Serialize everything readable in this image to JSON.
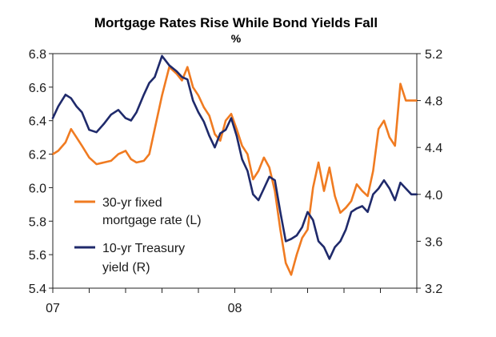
{
  "chart_data": {
    "type": "line",
    "title": "Mortgage Rates Rise While Bond Yields Fall",
    "subtitle": "%",
    "x_tick_labels": [
      "07",
      "08"
    ],
    "left_axis": {
      "ylim": [
        5.4,
        6.8
      ],
      "ticks": [
        "6.8",
        "6.6",
        "6.4",
        "6.2",
        "6.0",
        "5.8",
        "5.6",
        "5.4"
      ]
    },
    "right_axis": {
      "ylim": [
        3.2,
        5.2
      ],
      "ticks": [
        "5.2",
        "4.8",
        "4.4",
        "4.0",
        "3.6",
        "3.2"
      ]
    },
    "x_range": [
      0,
      20
    ],
    "series": [
      {
        "name": "30-yr fixed mortgage rate (L)",
        "legend_lines": [
          "30-yr fixed",
          "mortgage rate (L)"
        ],
        "axis": "left",
        "color": "#f07b21",
        "x": [
          0,
          0.3,
          0.7,
          1.0,
          1.3,
          1.6,
          2.0,
          2.4,
          2.8,
          3.2,
          3.6,
          4.0,
          4.3,
          4.6,
          5.0,
          5.3,
          5.6,
          6.0,
          6.4,
          6.8,
          7.1,
          7.4,
          7.7,
          8.0,
          8.3,
          8.6,
          8.9,
          9.2,
          9.5,
          9.8,
          10.1,
          10.4,
          10.7,
          11.0,
          11.3,
          11.6,
          11.9,
          12.2,
          12.5,
          12.8,
          13.1,
          13.4,
          13.7,
          14.0,
          14.3,
          14.6,
          14.9,
          15.2,
          15.5,
          15.8,
          16.1,
          16.4,
          16.7,
          17.0,
          17.3,
          17.6,
          17.9,
          18.2,
          18.5,
          18.8,
          19.1,
          19.4,
          19.7,
          20.0
        ],
        "values": [
          6.2,
          6.22,
          6.27,
          6.35,
          6.3,
          6.25,
          6.18,
          6.14,
          6.15,
          6.16,
          6.2,
          6.22,
          6.17,
          6.15,
          6.16,
          6.2,
          6.35,
          6.55,
          6.72,
          6.68,
          6.64,
          6.72,
          6.6,
          6.55,
          6.48,
          6.43,
          6.32,
          6.28,
          6.4,
          6.44,
          6.35,
          6.25,
          6.2,
          6.05,
          6.1,
          6.18,
          6.12,
          5.98,
          5.75,
          5.55,
          5.48,
          5.6,
          5.7,
          5.75,
          6.0,
          6.15,
          5.98,
          6.12,
          5.95,
          5.85,
          5.88,
          5.92,
          6.02,
          5.98,
          5.95,
          6.1,
          6.35,
          6.4,
          6.3,
          6.25,
          6.62,
          6.52,
          6.52,
          6.52
        ]
      },
      {
        "name": "10-yr Treasury yield (R)",
        "legend_lines": [
          "10-yr Treasury",
          "yield (R)"
        ],
        "axis": "right",
        "color": "#1f2a6b",
        "x": [
          0,
          0.3,
          0.7,
          1.0,
          1.3,
          1.6,
          2.0,
          2.4,
          2.8,
          3.2,
          3.6,
          4.0,
          4.3,
          4.6,
          5.0,
          5.3,
          5.6,
          6.0,
          6.4,
          6.8,
          7.1,
          7.4,
          7.7,
          8.0,
          8.3,
          8.6,
          8.9,
          9.2,
          9.5,
          9.8,
          10.1,
          10.4,
          10.7,
          11.0,
          11.3,
          11.6,
          11.9,
          12.2,
          12.5,
          12.8,
          13.1,
          13.4,
          13.7,
          14.0,
          14.3,
          14.6,
          14.9,
          15.2,
          15.5,
          15.8,
          16.1,
          16.4,
          16.7,
          17.0,
          17.3,
          17.6,
          17.9,
          18.2,
          18.5,
          18.8,
          19.1,
          19.4,
          19.7,
          20.0
        ],
        "values": [
          4.65,
          4.75,
          4.85,
          4.82,
          4.75,
          4.7,
          4.55,
          4.53,
          4.6,
          4.68,
          4.72,
          4.65,
          4.63,
          4.7,
          4.85,
          4.95,
          5.0,
          5.18,
          5.1,
          5.05,
          5.0,
          4.98,
          4.8,
          4.7,
          4.62,
          4.5,
          4.4,
          4.52,
          4.55,
          4.65,
          4.5,
          4.3,
          4.2,
          4.0,
          3.95,
          4.05,
          4.15,
          4.12,
          3.85,
          3.6,
          3.62,
          3.65,
          3.72,
          3.85,
          3.78,
          3.6,
          3.55,
          3.45,
          3.55,
          3.6,
          3.7,
          3.85,
          3.88,
          3.9,
          3.85,
          4.0,
          4.05,
          4.12,
          4.05,
          3.95,
          4.1,
          4.05,
          4.0,
          4.0
        ]
      }
    ]
  }
}
